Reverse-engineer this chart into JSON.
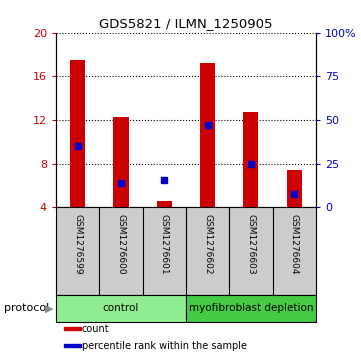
{
  "title": "GDS5821 / ILMN_1250905",
  "samples": [
    "GSM1276599",
    "GSM1276600",
    "GSM1276601",
    "GSM1276602",
    "GSM1276603",
    "GSM1276604"
  ],
  "counts": [
    17.5,
    12.3,
    4.6,
    17.2,
    12.7,
    7.4
  ],
  "percentile_left_axis": [
    9.6,
    6.2,
    6.5,
    11.5,
    8.0,
    5.2
  ],
  "ymin": 4,
  "ymax": 20,
  "yticks": [
    4,
    8,
    12,
    16,
    20
  ],
  "right_yticks": [
    0,
    25,
    50,
    75,
    100
  ],
  "right_ytick_labels": [
    "0",
    "25",
    "50",
    "75",
    "100%"
  ],
  "bar_color": "#cc0000",
  "blue_color": "#0000cc",
  "grid_color": "#000000",
  "groups": [
    {
      "label": "control",
      "indices": [
        0,
        1,
        2
      ],
      "color": "#90ee90"
    },
    {
      "label": "myofibroblast depletion",
      "indices": [
        3,
        4,
        5
      ],
      "color": "#44cc44"
    }
  ],
  "protocol_label": "protocol",
  "legend": [
    {
      "label": "count",
      "color": "#cc0000"
    },
    {
      "label": "percentile rank within the sample",
      "color": "#0000cc"
    }
  ],
  "label_area_bg": "#cccccc",
  "fig_bg": "#ffffff",
  "bar_width": 0.35,
  "blue_marker_size": 5
}
